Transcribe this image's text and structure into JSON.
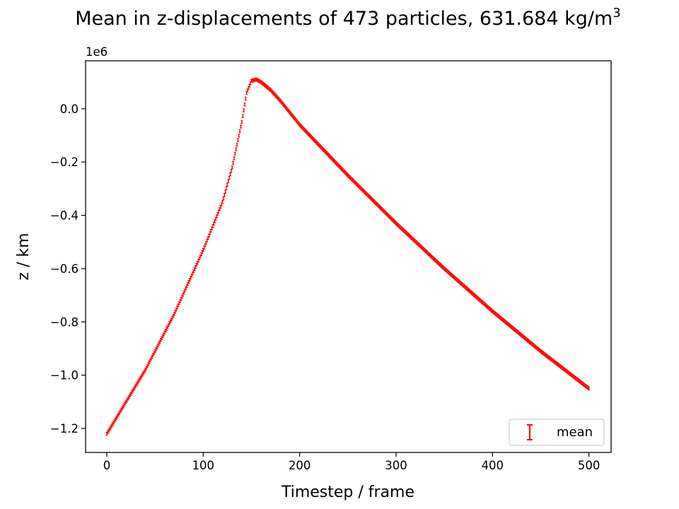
{
  "chart_data": {
    "type": "scatter",
    "title_main": "Mean in z-displacements of 473 particles, 631.684 kg/m",
    "title_sup": "3",
    "xlabel": "Timestep / frame",
    "ylabel": "z / km",
    "y_offset_label": "1e6",
    "xlim": [
      -22,
      523
    ],
    "ylim": [
      -1.29,
      0.18
    ],
    "xticks": [
      0,
      100,
      200,
      300,
      400,
      500
    ],
    "xtick_labels": [
      "0",
      "100",
      "200",
      "300",
      "400",
      "500"
    ],
    "yticks": [
      0.0,
      -0.2,
      -0.4,
      -0.6,
      -0.8,
      -1.0,
      -1.2
    ],
    "ytick_labels": [
      "0.0",
      "−0.2",
      "−0.4",
      "−0.6",
      "−0.8",
      "−1.0",
      "−1.2"
    ],
    "grid": false,
    "legend_position": "lower-right",
    "series": [
      {
        "name": "mean",
        "color": "#ff0000",
        "marker": "errorbar",
        "x": [
          0,
          10,
          20,
          30,
          40,
          50,
          60,
          70,
          80,
          90,
          100,
          110,
          120,
          130,
          140,
          145,
          150,
          155,
          160,
          170,
          180,
          200,
          250,
          300,
          350,
          400,
          450,
          500
        ],
        "y": [
          -1.22,
          -1.16,
          -1.1,
          -1.04,
          -0.98,
          -0.91,
          -0.84,
          -0.77,
          -0.69,
          -0.61,
          -0.53,
          -0.44,
          -0.35,
          -0.22,
          -0.05,
          0.06,
          0.105,
          0.11,
          0.1,
          0.07,
          0.03,
          -0.06,
          -0.25,
          -0.43,
          -0.6,
          -0.76,
          -0.91,
          -1.05
        ]
      }
    ]
  }
}
